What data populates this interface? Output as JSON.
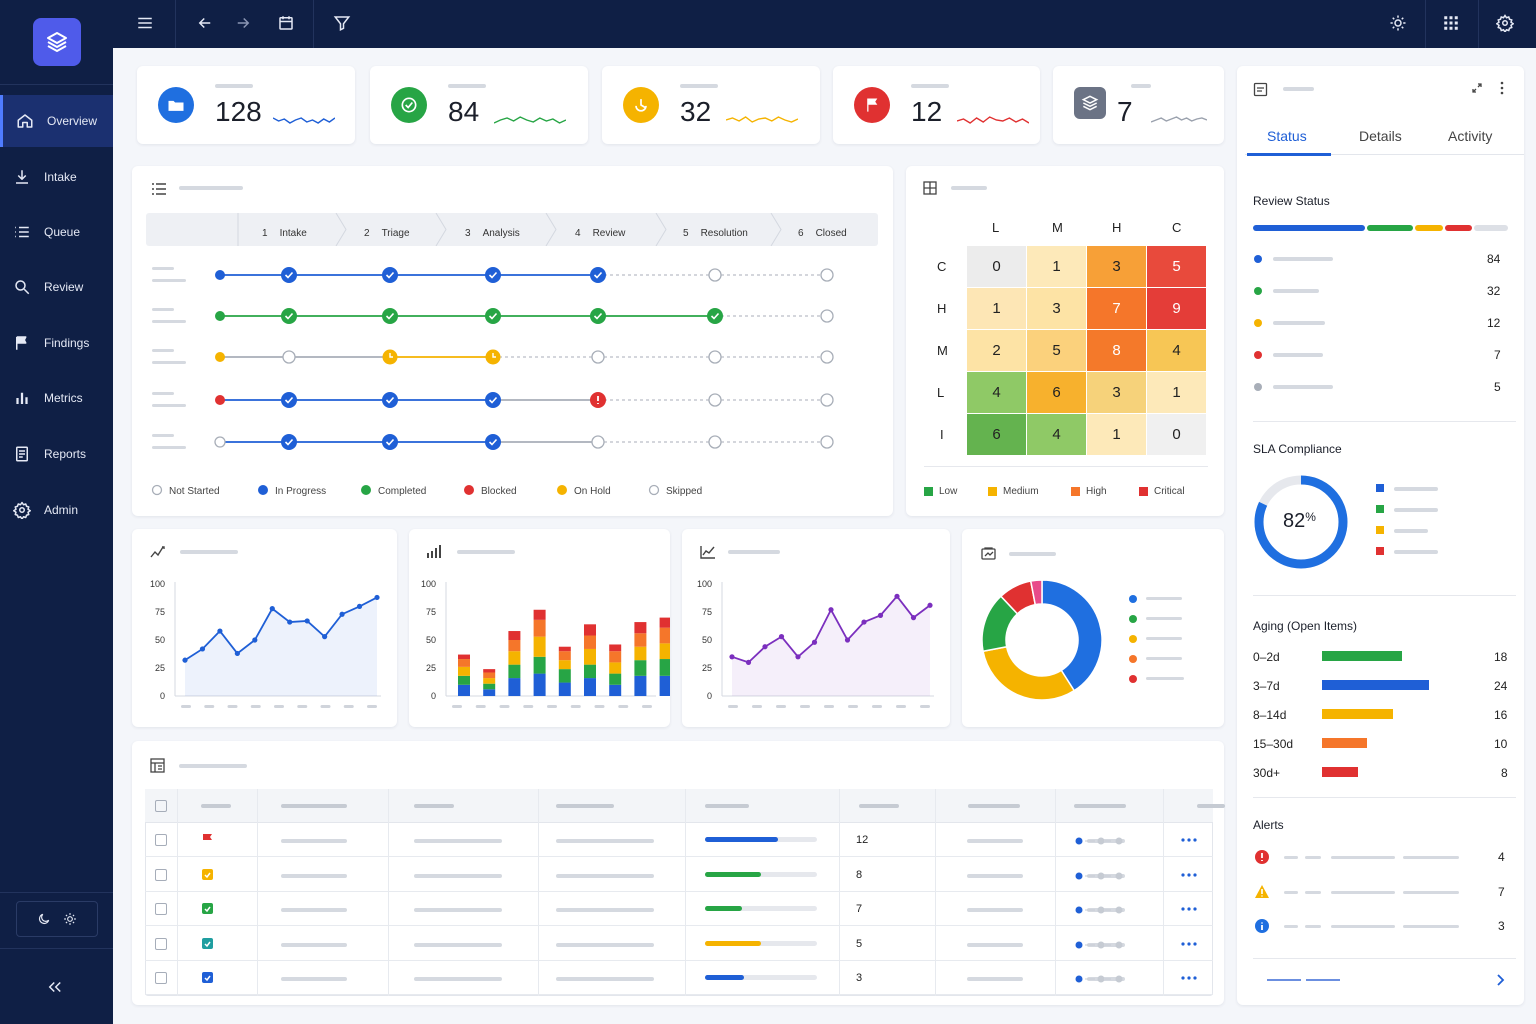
{
  "nav": {
    "items": [
      {
        "label": "Overview",
        "icon": "home-icon"
      },
      {
        "label": "Intake",
        "icon": "download-icon"
      },
      {
        "label": "Queue",
        "icon": "list-icon"
      },
      {
        "label": "Review",
        "icon": "search-icon"
      },
      {
        "label": "Findings",
        "icon": "flag-icon"
      },
      {
        "label": "Metrics",
        "icon": "bar-chart-icon"
      },
      {
        "label": "Reports",
        "icon": "document-icon"
      },
      {
        "label": "Admin",
        "icon": "gear-icon"
      }
    ],
    "active": "Overview"
  },
  "kpis": [
    {
      "value": "128",
      "icon": "folder-icon",
      "color": "#1f6fe0"
    },
    {
      "value": "84",
      "icon": "check-circle-icon",
      "color": "#27a545"
    },
    {
      "value": "32",
      "icon": "clock-icon",
      "color": "#f5b300"
    },
    {
      "value": "12",
      "icon": "flag-icon",
      "color": "#e03131"
    },
    {
      "value": "7",
      "icon": "layers-icon",
      "color": "#6b7385"
    }
  ],
  "workflow": {
    "stages": [
      {
        "num": "1",
        "label": "Intake"
      },
      {
        "num": "2",
        "label": "Triage"
      },
      {
        "num": "3",
        "label": "Analysis"
      },
      {
        "num": "4",
        "label": "Review"
      },
      {
        "num": "5",
        "label": "Resolution"
      },
      {
        "num": "6",
        "label": "Closed"
      }
    ],
    "legend": [
      "Not Started",
      "In Progress",
      "Completed",
      "Blocked",
      "On Hold",
      "Skipped"
    ]
  },
  "heatmap": {
    "cols": [
      "L",
      "M",
      "H",
      "C"
    ],
    "rows": [
      "C",
      "H",
      "M",
      "L",
      "I"
    ],
    "values": [
      [
        0,
        1,
        3,
        5
      ],
      [
        1,
        3,
        7,
        9
      ],
      [
        2,
        5,
        8,
        4
      ],
      [
        4,
        6,
        3,
        1
      ],
      [
        6,
        4,
        1,
        0
      ]
    ],
    "legend": [
      "Low",
      "Medium",
      "High",
      "Critical"
    ]
  },
  "charts": {
    "line1": {
      "type": "line",
      "yticks": [
        "100",
        "75",
        "50",
        "25",
        "0"
      ],
      "values": [
        32,
        42,
        58,
        38,
        50,
        78,
        66,
        67,
        53,
        73,
        80,
        88
      ],
      "color": "#1f5fd6"
    },
    "bars": {
      "type": "bar",
      "yticks": [
        "100",
        "75",
        "50",
        "25",
        "0"
      ],
      "color": "#f0f0f0"
    },
    "line2": {
      "type": "line",
      "yticks": [
        "100",
        "75",
        "50",
        "25",
        "0"
      ],
      "values": [
        35,
        30,
        44,
        53,
        35,
        48,
        77,
        50,
        66,
        72,
        89,
        70,
        81
      ],
      "color": "#7b2fbe"
    },
    "donut": {
      "type": "pie",
      "color": "#f0f0f0"
    }
  },
  "right_panel": {
    "tabs": [
      "Status",
      "Details",
      "Activity"
    ],
    "active_tab": "Status",
    "review_status": {
      "title": "Review Status",
      "counts": [
        "84",
        "32",
        "12",
        "7",
        "5"
      ]
    },
    "sla": {
      "title": "SLA Compliance",
      "value": "82",
      "unit": "%"
    },
    "aging": {
      "title": "Aging (Open Items)",
      "rows": [
        {
          "label": "0–2d",
          "count": "18"
        },
        {
          "label": "3–7d",
          "count": "24"
        },
        {
          "label": "8–14d",
          "count": "16"
        },
        {
          "label": "15–30d",
          "count": "10"
        },
        {
          "label": "30d+",
          "count": "8"
        }
      ]
    },
    "alerts": {
      "title": "Alerts",
      "counts": [
        "4",
        "7",
        "3"
      ]
    }
  },
  "table": {
    "rows": [
      {
        "count": "12",
        "progress": 0.65,
        "color": "#1f5fd6"
      },
      {
        "count": "8",
        "progress": 0.5,
        "color": "#27a545"
      },
      {
        "count": "7",
        "progress": 0.33,
        "color": "#27a545"
      },
      {
        "count": "5",
        "progress": 0.5,
        "color": "#f5b300"
      },
      {
        "count": "3",
        "progress": 0.35,
        "color": "#1f5fd6"
      }
    ]
  }
}
